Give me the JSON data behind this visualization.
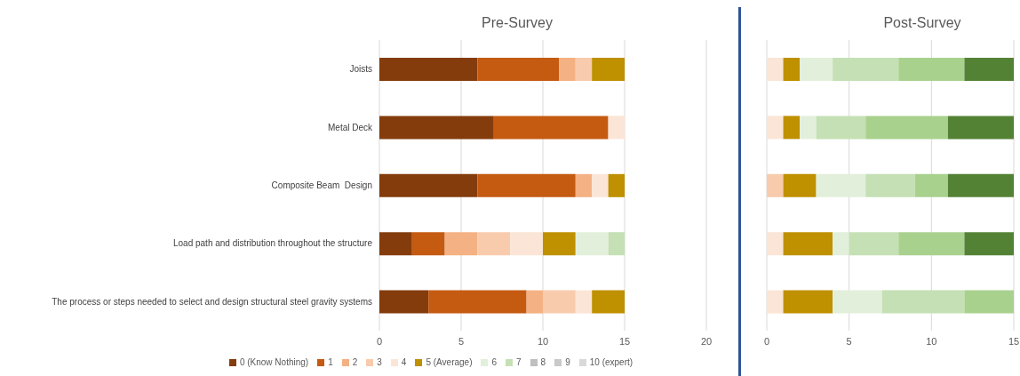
{
  "chart_data": [
    {
      "type": "bar",
      "orientation": "horizontal",
      "stacked": true,
      "title": "Pre-Survey",
      "categories": [
        "Joists",
        "Metal Deck",
        "Composite Beam  Design",
        "Load path and distribution throughout the structure",
        "The process or steps needed to select and design structural steel gravity systems"
      ],
      "series": [
        {
          "name": "0 (Know Nothing)",
          "color": "#843c0c",
          "values": [
            6,
            7,
            6,
            2,
            3
          ]
        },
        {
          "name": "1",
          "color": "#c55a11",
          "values": [
            5,
            7,
            6,
            2,
            6
          ]
        },
        {
          "name": "2",
          "color": "#f4b183",
          "values": [
            1,
            0,
            1,
            2,
            1
          ]
        },
        {
          "name": "3",
          "color": "#f8cbad",
          "values": [
            1,
            0,
            0,
            2,
            2
          ]
        },
        {
          "name": "4",
          "color": "#fbe5d6",
          "values": [
            0,
            1,
            1,
            2,
            1
          ]
        },
        {
          "name": "5 (Average)",
          "color": "#bf9000",
          "values": [
            2,
            0,
            1,
            2,
            2
          ]
        },
        {
          "name": "6",
          "color": "#e2efda",
          "values": [
            0,
            0,
            0,
            2,
            0
          ]
        },
        {
          "name": "7",
          "color": "#c5e0b4",
          "values": [
            0,
            0,
            0,
            1,
            0
          ]
        },
        {
          "name": "8",
          "color": "#bfbfbf",
          "values": [
            0,
            0,
            0,
            0,
            0
          ]
        },
        {
          "name": "9",
          "color": "#c9c9c9",
          "values": [
            0,
            0,
            0,
            0,
            0
          ]
        },
        {
          "name": "10 (expert)",
          "color": "#d9d9d9",
          "values": [
            0,
            0,
            0,
            0,
            0
          ]
        }
      ],
      "xlim": [
        0,
        20
      ],
      "xticks": [
        0,
        5,
        10,
        15,
        20
      ],
      "grid": "x",
      "legend": "bottom"
    },
    {
      "type": "bar",
      "orientation": "horizontal",
      "stacked": true,
      "title": "Post-Survey",
      "categories": [
        null,
        null,
        null,
        null,
        null
      ],
      "series": [
        {
          "color": "#f8cbad",
          "values": [
            0,
            0,
            1,
            0,
            0
          ]
        },
        {
          "color": "#fbe5d6",
          "values": [
            1,
            1,
            0,
            1,
            1
          ]
        },
        {
          "color": "#bf9000",
          "values": [
            1,
            1,
            2,
            3,
            3
          ]
        },
        {
          "color": "#e2efda",
          "values": [
            2,
            1,
            3,
            1,
            3
          ]
        },
        {
          "color": "#c5e0b4",
          "values": [
            4,
            3,
            3,
            3,
            5
          ]
        },
        {
          "color": "#a9d18e",
          "values": [
            4,
            5,
            2,
            4,
            3
          ]
        },
        {
          "color": "#548235",
          "values": [
            3,
            4,
            4,
            3,
            0
          ]
        }
      ],
      "xlim": [
        0,
        15
      ],
      "xticks": [
        0,
        5,
        10,
        15
      ],
      "grid": "x",
      "tick_labels": "x"
    }
  ]
}
